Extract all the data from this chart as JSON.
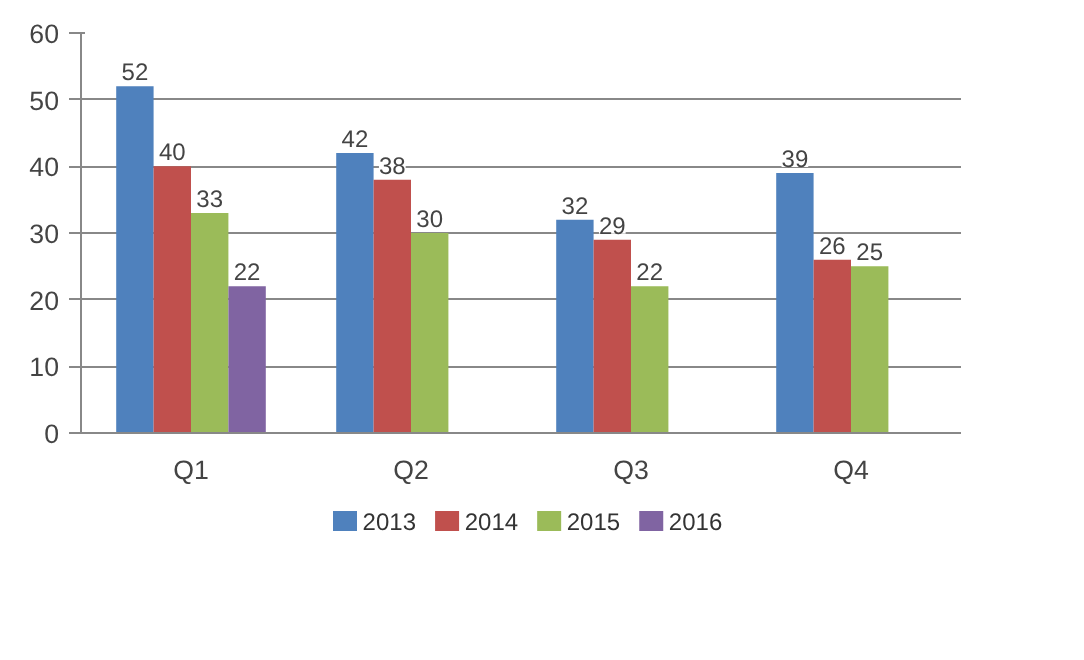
{
  "chart_data": {
    "type": "bar",
    "categories": [
      "Q1",
      "Q2",
      "Q3",
      "Q4"
    ],
    "series": [
      {
        "name": "2013",
        "color": "#4f81bd",
        "values": [
          52,
          42,
          32,
          39
        ]
      },
      {
        "name": "2014",
        "color": "#c0504d",
        "values": [
          40,
          38,
          29,
          26
        ]
      },
      {
        "name": "2015",
        "color": "#9bbb59",
        "values": [
          33,
          30,
          22,
          25
        ]
      },
      {
        "name": "2016",
        "color": "#8064a2",
        "values": [
          22,
          null,
          null,
          null
        ]
      }
    ],
    "ylim": [
      0,
      60
    ],
    "yticks": [
      0,
      10,
      20,
      30,
      40,
      50,
      60
    ],
    "grid": "y",
    "legend": "bottom",
    "data_labels": true
  }
}
